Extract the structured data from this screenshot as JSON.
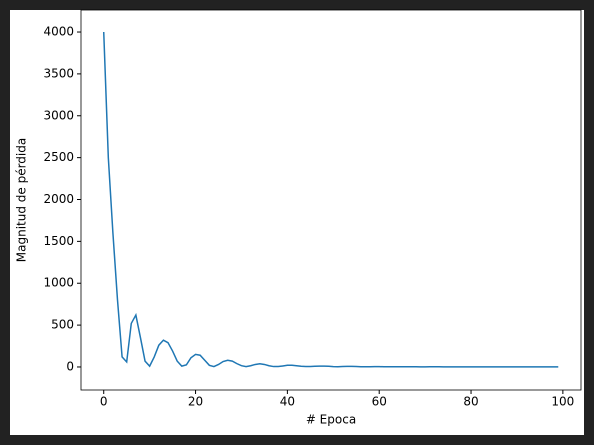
{
  "chart_data": {
    "type": "line",
    "x_label": "# Epoca",
    "y_label": "Magnitud de pérdida",
    "x": [
      0,
      1,
      2,
      3,
      4,
      5,
      6,
      7,
      8,
      9,
      10,
      11,
      12,
      13,
      14,
      15,
      16,
      17,
      18,
      19,
      20,
      21,
      22,
      23,
      24,
      25,
      26,
      27,
      28,
      29,
      30,
      31,
      32,
      33,
      34,
      35,
      36,
      37,
      38,
      39,
      40,
      41,
      42,
      43,
      44,
      45,
      46,
      47,
      48,
      49,
      50,
      51,
      52,
      53,
      54,
      55,
      56,
      57,
      58,
      59,
      60,
      61,
      62,
      63,
      64,
      65,
      66,
      67,
      68,
      69,
      70,
      71,
      72,
      73,
      74,
      75,
      76,
      77,
      78,
      79,
      80,
      81,
      82,
      83,
      84,
      85,
      86,
      87,
      88,
      89,
      90,
      91,
      92,
      93,
      94,
      95,
      96,
      97,
      98,
      99
    ],
    "series": [
      {
        "name": "loss",
        "color": "#1f77b4",
        "values": [
          4000,
          2500,
          1600,
          800,
          120,
          60,
          520,
          620,
          350,
          70,
          10,
          120,
          260,
          320,
          290,
          190,
          70,
          10,
          25,
          110,
          150,
          140,
          80,
          20,
          5,
          30,
          65,
          80,
          70,
          40,
          15,
          5,
          15,
          30,
          38,
          30,
          15,
          5,
          5,
          12,
          20,
          20,
          15,
          8,
          5,
          5,
          8,
          10,
          10,
          8,
          4,
          3,
          5,
          7,
          7,
          5,
          3,
          2,
          3,
          4,
          4,
          3,
          2,
          2,
          2,
          3,
          3,
          2,
          2,
          1,
          1,
          2,
          2,
          2,
          1,
          1,
          1,
          1,
          1,
          1,
          1,
          1,
          1,
          1,
          1,
          1,
          1,
          1,
          1,
          1,
          1,
          1,
          1,
          1,
          1,
          1,
          1,
          1,
          1,
          1
        ]
      }
    ],
    "xlim": [
      -4.95,
      103.95
    ],
    "ylim": [
      -275,
      4263
    ],
    "xticks": [
      0,
      20,
      40,
      60,
      80,
      100
    ],
    "yticks": [
      0,
      500,
      1000,
      1500,
      2000,
      2500,
      3000,
      3500,
      4000
    ]
  }
}
